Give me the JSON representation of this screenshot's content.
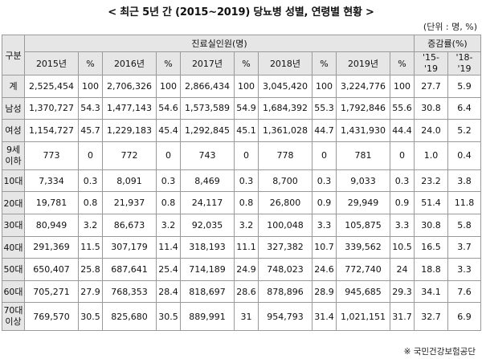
{
  "title": "< 최근 5년 간 (2015~2019) 당뇨병 성별, 연령별 현황 >",
  "unit": "(단위 : 명, %)",
  "source": "※ 국민건강보험공단",
  "header": {
    "category": "구분",
    "group_main": "진료실인원(명)",
    "group_change": "증감률(%)",
    "years": [
      "2015년",
      "2016년",
      "2017년",
      "2018년",
      "2019년"
    ],
    "pct": "%",
    "change_1": "'15-'19",
    "change_2": "'18-'19"
  },
  "rows": [
    {
      "label": "계",
      "cells": [
        "2,525,454",
        "100",
        "2,706,326",
        "100",
        "2,866,434",
        "100",
        "3,045,420",
        "100",
        "3,224,776",
        "100",
        "27.7",
        "5.9"
      ]
    },
    {
      "label": "남성",
      "cells": [
        "1,370,727",
        "54.3",
        "1,477,143",
        "54.6",
        "1,573,589",
        "54.9",
        "1,684,392",
        "55.3",
        "1,792,846",
        "55.6",
        "30.8",
        "6.4"
      ]
    },
    {
      "label": "여성",
      "cells": [
        "1,154,727",
        "45.7",
        "1,229,183",
        "45.4",
        "1,292,845",
        "45.1",
        "1,361,028",
        "44.7",
        "1,431,930",
        "44.4",
        "24.0",
        "5.2"
      ]
    },
    {
      "label": "9세 이하",
      "cells": [
        "773",
        "0",
        "772",
        "0",
        "743",
        "0",
        "778",
        "0",
        "781",
        "0",
        "1.0",
        "0.4"
      ]
    },
    {
      "label": "10대",
      "cells": [
        "7,334",
        "0.3",
        "8,091",
        "0.3",
        "8,469",
        "0.3",
        "8,700",
        "0.3",
        "9,033",
        "0.3",
        "23.2",
        "3.8"
      ]
    },
    {
      "label": "20대",
      "cells": [
        "19,781",
        "0.8",
        "21,937",
        "0.8",
        "24,117",
        "0.8",
        "26,800",
        "0.9",
        "29,949",
        "0.9",
        "51.4",
        "11.8"
      ]
    },
    {
      "label": "30대",
      "cells": [
        "80,949",
        "3.2",
        "86,673",
        "3.2",
        "92,035",
        "3.2",
        "100,048",
        "3.3",
        "105,875",
        "3.3",
        "30.8",
        "5.8"
      ]
    },
    {
      "label": "40대",
      "cells": [
        "291,369",
        "11.5",
        "307,179",
        "11.4",
        "318,193",
        "11.1",
        "327,382",
        "10.7",
        "339,562",
        "10.5",
        "16.5",
        "3.7"
      ]
    },
    {
      "label": "50대",
      "cells": [
        "650,407",
        "25.8",
        "687,641",
        "25.4",
        "714,189",
        "24.9",
        "748,023",
        "24.6",
        "772,740",
        "24",
        "18.8",
        "3.3"
      ]
    },
    {
      "label": "60대",
      "cells": [
        "705,271",
        "27.9",
        "768,353",
        "28.4",
        "818,697",
        "28.6",
        "878,896",
        "28.9",
        "945,685",
        "29.3",
        "34.1",
        "7.6"
      ]
    },
    {
      "label": "70대 이상",
      "cells": [
        "769,570",
        "30.5",
        "825,680",
        "30.5",
        "889,991",
        "31",
        "954,793",
        "31.4",
        "1,021,151",
        "31.7",
        "32.7",
        "6.9"
      ]
    }
  ]
}
